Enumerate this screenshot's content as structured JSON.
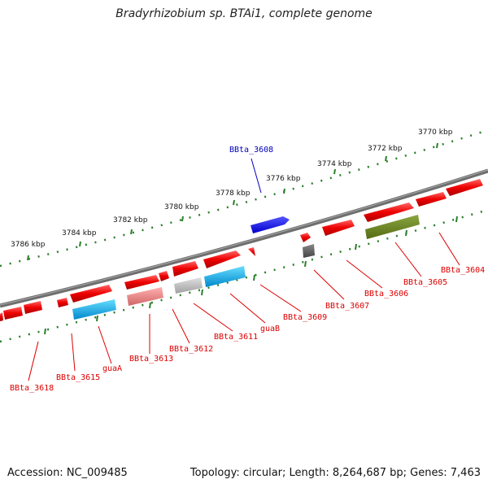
{
  "title": "Bradyrhizobium sp. BTAi1, complete genome",
  "footer": {
    "accession": "Accession: NC_009485",
    "topology": "Topology: circular; Length: 8,264,687 bp; Genes: 7,463"
  },
  "scale_labels": [
    "3770 kbp",
    "3772 kbp",
    "3774 kbp",
    "3776 kbp",
    "3778 kbp",
    "3780 kbp",
    "3782 kbp",
    "3784 kbp",
    "3786 kbp"
  ],
  "gene_labels": [
    {
      "name": "BBta_3604",
      "color": "#dd0000"
    },
    {
      "name": "BBta_3605",
      "color": "#dd0000"
    },
    {
      "name": "BBta_3606",
      "color": "#dd0000"
    },
    {
      "name": "BBta_3607",
      "color": "#dd0000"
    },
    {
      "name": "BBta_3608",
      "color": "#0000bb"
    },
    {
      "name": "BBta_3609",
      "color": "#dd0000"
    },
    {
      "name": "guaB",
      "color": "#dd0000"
    },
    {
      "name": "BBta_3611",
      "color": "#dd0000"
    },
    {
      "name": "BBta_3612",
      "color": "#dd0000"
    },
    {
      "name": "BBta_3613",
      "color": "#dd0000"
    },
    {
      "name": "guaA",
      "color": "#dd0000"
    },
    {
      "name": "BBta_3615",
      "color": "#dd0000"
    },
    {
      "name": "BBta_3618",
      "color": "#dd0000"
    }
  ],
  "colors": {
    "cds": "#ee0000",
    "rna_blue": "#0000ee",
    "feature_cyan": "#00aaee",
    "feature_olive": "#667f1e",
    "feature_pink": "#e88080",
    "feature_gray": "#c0c0c0",
    "feature_dark": "#666666",
    "backbone": "#777777",
    "ticks": "#2a7f2a"
  }
}
